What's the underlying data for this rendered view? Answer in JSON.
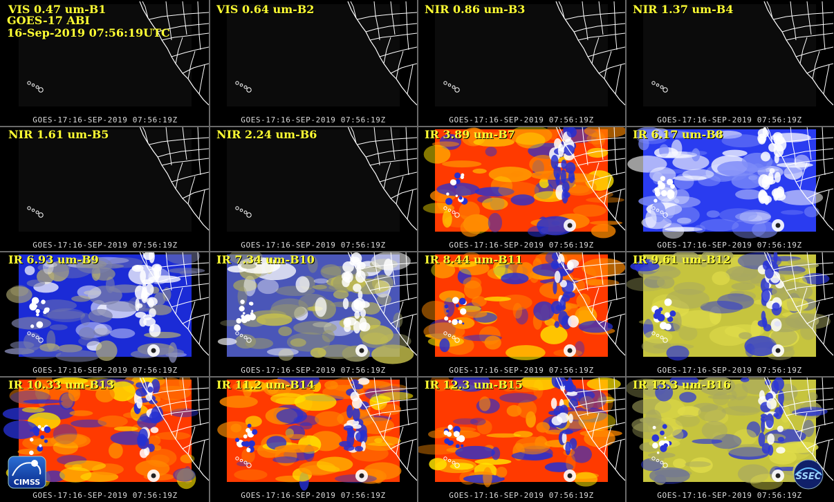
{
  "header": {
    "satellite": "GOES-17 ABI",
    "datetime": "16-Sep-2019 07:56:19UTC"
  },
  "timestamp": "GOES-17:16-SEP-2019 07:56:19Z",
  "panels": [
    {
      "title": "VIS 0.47 um-B1",
      "style": "dark"
    },
    {
      "title": "VIS 0.64 um-B2",
      "style": "dark"
    },
    {
      "title": "NIR 0.86 um-B3",
      "style": "dark"
    },
    {
      "title": "NIR 1.37 um-B4",
      "style": "dark"
    },
    {
      "title": "NIR 1.61 um-B5",
      "style": "dark"
    },
    {
      "title": "NIR 2.24 um-B6",
      "style": "dark"
    },
    {
      "title": "IR 3.89 um-B7",
      "style": "warm"
    },
    {
      "title": "IR 6.17 um-B8",
      "style": "vapor-white"
    },
    {
      "title": "IR 6.93 um-B9",
      "style": "vapor-blue"
    },
    {
      "title": "IR 7.34 um-B10",
      "style": "vapor-olive"
    },
    {
      "title": "IR 8.44 um-B11",
      "style": "warm"
    },
    {
      "title": "IR 9.61 um-B12",
      "style": "ozone"
    },
    {
      "title": "IR 10.33 um-B13",
      "style": "warm"
    },
    {
      "title": "IR 11.2 um-B14",
      "style": "warm"
    },
    {
      "title": "IR 12.3 um-B15",
      "style": "warm"
    },
    {
      "title": "IR 13.3 um-B16",
      "style": "ozone"
    }
  ],
  "logos": {
    "left": "CIMSS",
    "right": "SSEC"
  },
  "colors": {
    "title_yellow": "#ffff33",
    "timestamp_gray": "#dddddd",
    "warm_red": "#ff2a00",
    "warm_orange": "#ff8c00",
    "warm_yellow": "#ffe600",
    "vapor_blue": "#1a2bd8",
    "vapor_white": "#e8ecff",
    "olive": "#b8b84a",
    "divider": "#6a6a6a"
  }
}
